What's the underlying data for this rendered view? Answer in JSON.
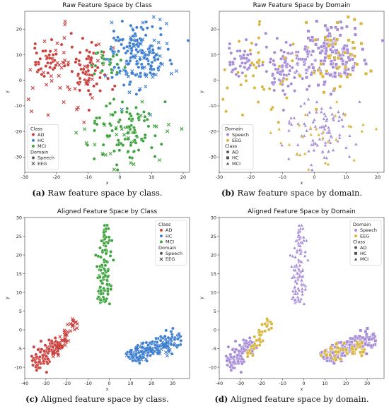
{
  "chart_data": [
    {
      "id": "a",
      "type": "scatter",
      "title": "Raw Feature Space by Class",
      "caption_label": "(a)",
      "caption_text": "Raw feature space by class.",
      "xlabel": "x",
      "ylabel": "y",
      "xlim": [
        -30,
        22
      ],
      "ylim": [
        -36,
        27
      ],
      "xticks": [
        -30,
        -20,
        -10,
        0,
        10,
        20
      ],
      "yticks": [
        -30,
        -20,
        -10,
        0,
        10,
        20
      ],
      "color_by": "class",
      "shape_by": "domain",
      "legend": {
        "placement": "lower-left",
        "groups": [
          {
            "title": "Class",
            "entries": [
              {
                "label": "AD",
                "color": "#c9403d",
                "shape": "circle"
              },
              {
                "label": "HC",
                "color": "#3f7fcf",
                "shape": "circle"
              },
              {
                "label": "MCI",
                "color": "#3fa33f",
                "shape": "circle"
              }
            ]
          },
          {
            "title": "Domain",
            "entries": [
              {
                "label": "Speech",
                "color": "#555555",
                "shape": "circle"
              },
              {
                "label": "EEG",
                "color": "#555555",
                "shape": "x"
              }
            ]
          }
        ]
      },
      "series": [
        {
          "class": "AD",
          "domain": "Speech",
          "clusters": [
            {
              "cx": -23,
              "cy": 8,
              "sx": 3,
              "sy": 3,
              "n": 40
            },
            {
              "cx": -10,
              "cy": 3,
              "sx": 3,
              "sy": 5,
              "n": 70
            }
          ]
        },
        {
          "class": "AD",
          "domain": "EEG",
          "clusters": [
            {
              "cx": -18,
              "cy": 3,
              "sx": 7,
              "sy": 8,
              "n": 45
            }
          ]
        },
        {
          "class": "HC",
          "domain": "Speech",
          "clusters": [
            {
              "cx": 5,
              "cy": 10,
              "sx": 5,
              "sy": 6,
              "n": 150
            }
          ]
        },
        {
          "class": "HC",
          "domain": "EEG",
          "clusters": [
            {
              "cx": 10,
              "cy": 8,
              "sx": 6,
              "sy": 8,
              "n": 50
            }
          ]
        },
        {
          "class": "MCI",
          "domain": "Speech",
          "clusters": [
            {
              "cx": 2,
              "cy": -20,
              "sx": 5,
              "sy": 6,
              "n": 95
            },
            {
              "cx": -5,
              "cy": 7,
              "sx": 2.5,
              "sy": 3,
              "n": 25
            }
          ]
        },
        {
          "class": "MCI",
          "domain": "EEG",
          "clusters": [
            {
              "cx": 5,
              "cy": -22,
              "sx": 9,
              "sy": 8,
              "n": 30
            }
          ]
        }
      ]
    },
    {
      "id": "b",
      "type": "scatter",
      "title": "Raw Feature Space by Domain",
      "caption_label": "(b)",
      "caption_text": "Raw feature space by domain.",
      "xlabel": "x",
      "ylabel": "y",
      "xlim": [
        -30,
        22
      ],
      "ylim": [
        -36,
        27
      ],
      "xticks": [
        -30,
        -20,
        -10,
        0,
        10,
        20
      ],
      "yticks": [
        -30,
        -20,
        -10,
        0,
        10,
        20
      ],
      "color_by": "domain",
      "shape_by": "class",
      "legend": {
        "placement": "lower-left",
        "groups": [
          {
            "title": "Domain",
            "entries": [
              {
                "label": "Speech",
                "color": "#a58bd6",
                "shape": "circle"
              },
              {
                "label": "EEG",
                "color": "#d9b43a",
                "shape": "circle"
              }
            ]
          },
          {
            "title": "Class",
            "entries": [
              {
                "label": "AD",
                "color": "#555555",
                "shape": "circle"
              },
              {
                "label": "HC",
                "color": "#555555",
                "shape": "square"
              },
              {
                "label": "MCI",
                "color": "#555555",
                "shape": "triangle"
              }
            ]
          }
        ]
      },
      "series": [
        {
          "class": "AD",
          "domain": "Speech",
          "clusters": [
            {
              "cx": -23,
              "cy": 8,
              "sx": 3,
              "sy": 3,
              "n": 40
            },
            {
              "cx": -10,
              "cy": 3,
              "sx": 3,
              "sy": 5,
              "n": 70
            }
          ]
        },
        {
          "class": "AD",
          "domain": "EEG",
          "clusters": [
            {
              "cx": -18,
              "cy": 3,
              "sx": 7,
              "sy": 8,
              "n": 45
            }
          ]
        },
        {
          "class": "HC",
          "domain": "Speech",
          "clusters": [
            {
              "cx": 5,
              "cy": 10,
              "sx": 5,
              "sy": 6,
              "n": 150
            }
          ]
        },
        {
          "class": "HC",
          "domain": "EEG",
          "clusters": [
            {
              "cx": 10,
              "cy": 8,
              "sx": 6,
              "sy": 8,
              "n": 50
            }
          ]
        },
        {
          "class": "MCI",
          "domain": "Speech",
          "clusters": [
            {
              "cx": 2,
              "cy": -20,
              "sx": 5,
              "sy": 6,
              "n": 95
            },
            {
              "cx": -5,
              "cy": 7,
              "sx": 2.5,
              "sy": 3,
              "n": 25
            }
          ]
        },
        {
          "class": "MCI",
          "domain": "EEG",
          "clusters": [
            {
              "cx": 5,
              "cy": -22,
              "sx": 9,
              "sy": 8,
              "n": 30
            }
          ]
        }
      ]
    },
    {
      "id": "c",
      "type": "scatter",
      "title": "Aligned Feature Space by Class",
      "caption_label": "(c)",
      "caption_text": "Aligned feature space by class.",
      "xlabel": "x",
      "ylabel": "y",
      "xlim": [
        -40,
        38
      ],
      "ylim": [
        -13,
        30
      ],
      "xticks": [
        -40,
        -30,
        -20,
        -10,
        0,
        10,
        20,
        30
      ],
      "yticks": [
        -10,
        -5,
        0,
        5,
        10,
        15,
        20,
        25,
        30
      ],
      "color_by": "class",
      "shape_by": "domain",
      "legend": {
        "placement": "upper-right",
        "groups": [
          {
            "title": "Class",
            "entries": [
              {
                "label": "AD",
                "color": "#c9403d",
                "shape": "circle"
              },
              {
                "label": "HC",
                "color": "#3f7fcf",
                "shape": "circle"
              },
              {
                "label": "MCI",
                "color": "#3fa33f",
                "shape": "circle"
              }
            ]
          },
          {
            "title": "Domain",
            "entries": [
              {
                "label": "Speech",
                "color": "#555555",
                "shape": "circle"
              },
              {
                "label": "EEG",
                "color": "#555555",
                "shape": "x"
              }
            ]
          }
        ]
      },
      "series": [
        {
          "class": "AD",
          "domain": "Speech",
          "lines": [
            {
              "x0": -36,
              "y0": -10,
              "x1": -24,
              "y1": -3,
              "spread": 1.6,
              "n": 110
            }
          ]
        },
        {
          "class": "AD",
          "domain": "EEG",
          "lines": [
            {
              "x0": -27,
              "y0": -7,
              "x1": -16,
              "y1": 2.5,
              "spread": 0.9,
              "n": 45
            }
          ]
        },
        {
          "class": "HC",
          "domain": "Speech",
          "lines": [
            {
              "x0": 8,
              "y0": -7.5,
              "x1": 34,
              "y1": -2,
              "spread": 1.8,
              "n": 150
            }
          ]
        },
        {
          "class": "HC",
          "domain": "EEG",
          "lines": [
            {
              "x0": 8,
              "y0": -6,
              "x1": 30,
              "y1": -5,
              "spread": 1.4,
              "n": 45
            }
          ]
        },
        {
          "class": "MCI",
          "domain": "Speech",
          "lines": [
            {
              "x0": -3,
              "y0": 7,
              "x1": -1,
              "y1": 28,
              "spread": 1.1,
              "n": 110
            }
          ]
        }
      ]
    },
    {
      "id": "d",
      "type": "scatter",
      "title": "Aligned Feature Space by Domain",
      "caption_label": "(d)",
      "caption_text": "Aligned feature space by domain.",
      "xlabel": "x",
      "ylabel": "y",
      "xlim": [
        -40,
        38
      ],
      "ylim": [
        -13,
        30
      ],
      "xticks": [
        -40,
        -30,
        -20,
        -10,
        0,
        10,
        20,
        30
      ],
      "yticks": [
        -10,
        -5,
        0,
        5,
        10,
        15,
        20,
        25,
        30
      ],
      "color_by": "domain",
      "shape_by": "class",
      "legend": {
        "placement": "upper-right",
        "groups": [
          {
            "title": "Domain",
            "entries": [
              {
                "label": "Speech",
                "color": "#a58bd6",
                "shape": "circle"
              },
              {
                "label": "EEG",
                "color": "#d9b43a",
                "shape": "circle"
              }
            ]
          },
          {
            "title": "Class",
            "entries": [
              {
                "label": "AD",
                "color": "#555555",
                "shape": "circle"
              },
              {
                "label": "HC",
                "color": "#555555",
                "shape": "square"
              },
              {
                "label": "MCI",
                "color": "#555555",
                "shape": "triangle"
              }
            ]
          }
        ]
      },
      "series": [
        {
          "class": "AD",
          "domain": "Speech",
          "lines": [
            {
              "x0": -36,
              "y0": -10,
              "x1": -24,
              "y1": -3,
              "spread": 1.6,
              "n": 110
            }
          ]
        },
        {
          "class": "AD",
          "domain": "EEG",
          "lines": [
            {
              "x0": -27,
              "y0": -7,
              "x1": -16,
              "y1": 2.5,
              "spread": 0.9,
              "n": 45
            }
          ]
        },
        {
          "class": "HC",
          "domain": "Speech",
          "lines": [
            {
              "x0": 8,
              "y0": -7.5,
              "x1": 34,
              "y1": -2,
              "spread": 1.8,
              "n": 150
            }
          ]
        },
        {
          "class": "HC",
          "domain": "EEG",
          "lines": [
            {
              "x0": 8,
              "y0": -6,
              "x1": 30,
              "y1": -5,
              "spread": 1.4,
              "n": 45
            }
          ]
        },
        {
          "class": "MCI",
          "domain": "Speech",
          "lines": [
            {
              "x0": -3,
              "y0": 7,
              "x1": -1,
              "y1": 28,
              "spread": 1.1,
              "n": 110
            }
          ]
        }
      ]
    }
  ],
  "palette": {
    "class": {
      "AD": "#c9403d",
      "HC": "#3f7fcf",
      "MCI": "#3fa33f"
    },
    "domain": {
      "Speech": "#a58bd6",
      "EEG": "#d9b43a"
    },
    "class_shape": {
      "AD": "circle",
      "HC": "square",
      "MCI": "triangle"
    },
    "domain_shape": {
      "Speech": "circle",
      "EEG": "x"
    }
  }
}
